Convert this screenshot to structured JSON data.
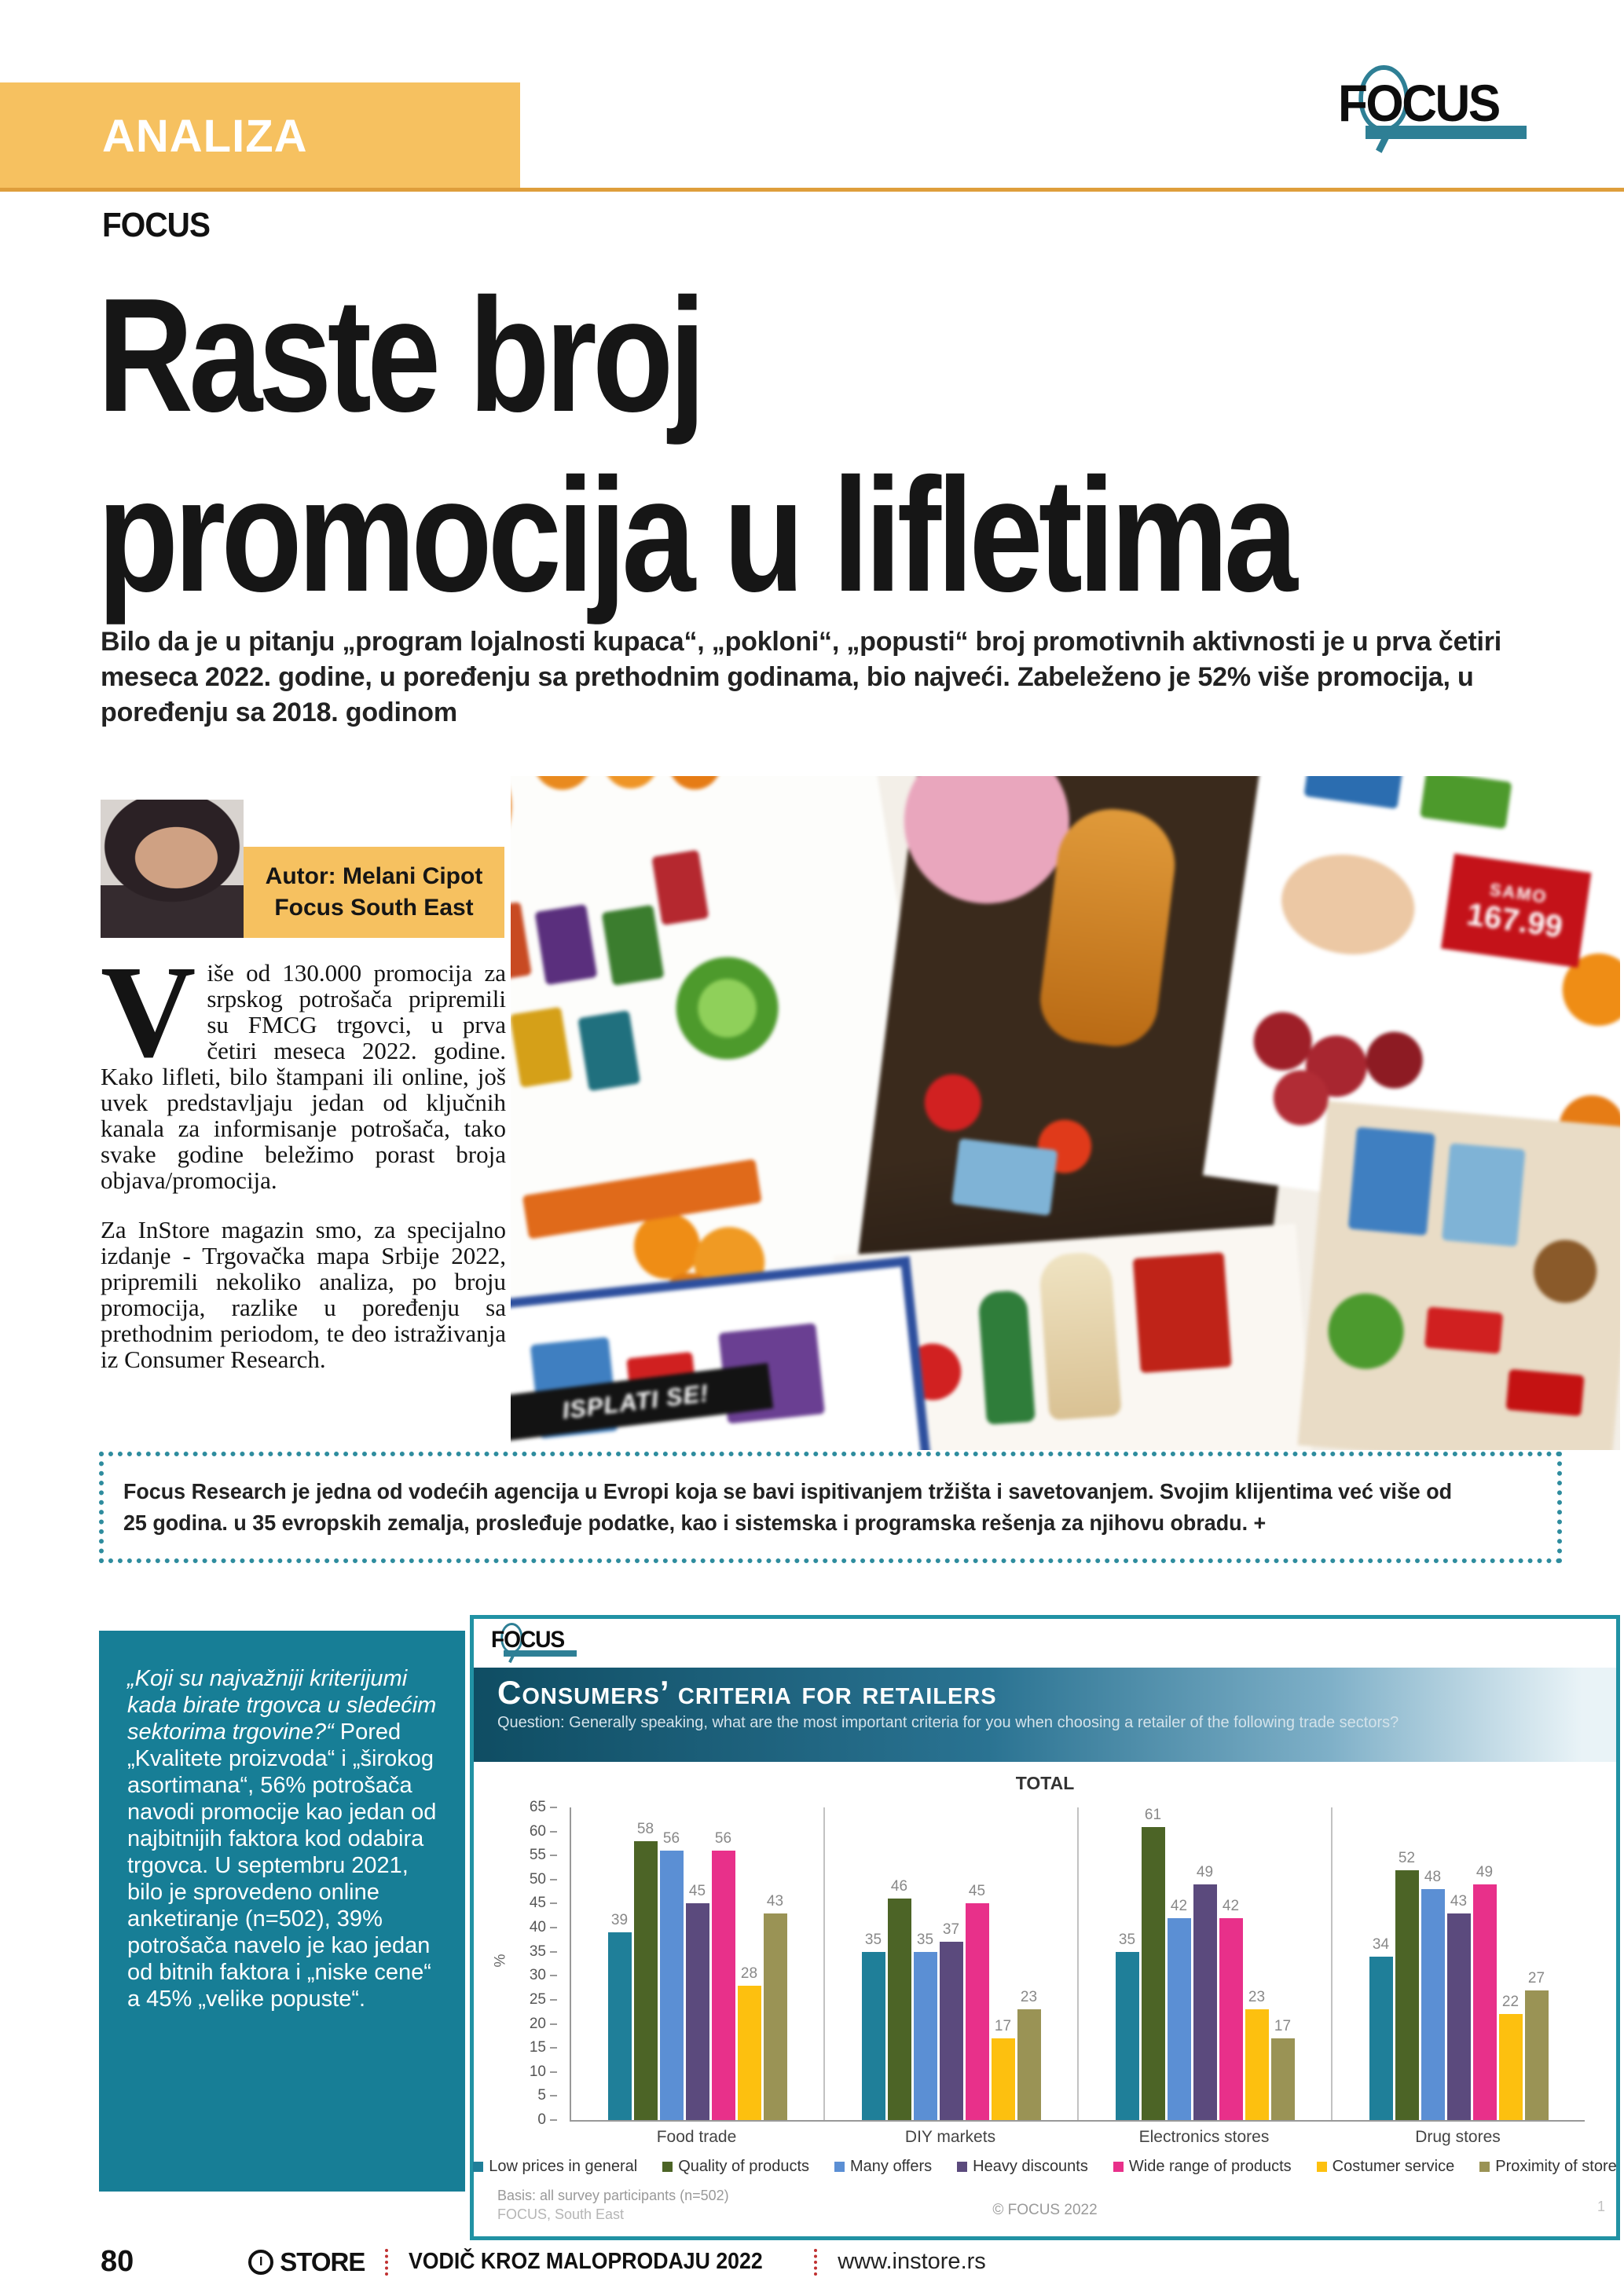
{
  "page": {
    "kicker": "ANALIZA",
    "section_label": "FOCUS",
    "title_line1": "Raste broj",
    "title_line2": "promocija u lifletima",
    "intro": "Bilo da je u pitanju „program lojalnosti kupaca“, „pokloni“, „popusti“ broj promotivnih aktivnosti je u prva četiri meseca 2022. godine, u poređenju sa prethodnim godinama, bio najveći. Zabeleženo je 52% više promocija, u poređenju sa 2018. godinom"
  },
  "logo": {
    "part1": "F",
    "o": "O",
    "part2": "CUS"
  },
  "author": {
    "line1": "Autor: Melani Cipot",
    "line2": "Focus South East"
  },
  "article": {
    "dropcap": "V",
    "para1_rest": "iše od 130.000 promocija za srpskog potrošača pripremili su FMCG trgovci, u prva četiri meseca 2022. godine. Kako lifleti, bilo štampani ili online, još uvek predstavljaju jedan od ključnih kanala za informisanje potrošača, tako svake godine beležimo porast broja objava/promocija.",
    "para2": "Za InStore magazin smo, za specijalno izdanje - Trgovačka mapa Srbije 2022, pripremili nekoliko analiza, po broju promocija, razlike u poređenju sa prethodnim periodom, te deo istraživanja iz Consumer Research."
  },
  "collage": {
    "strip_text": "ISPLATI SE!",
    "badge_small": "SAMO",
    "badge_price": "167.99"
  },
  "info_box": "Focus Research je jedna od vodećih agencija u Evropi koja se bavi ispitivanjem tržišta i savetovanjem. Svojim klijentima već više od 25 godina. u 35 evropskih zemalja, prosleđuje podatke, kao i sistemska i programska rešenja za njihovu obradu. +",
  "quote_box": {
    "italic": "„Koji su najvažniji kriterijumi kada birate trgovca u sledećim sektorima trgovine?“",
    "rest": " Pored „Kvalitete proizvoda“ i „širokog asortimana“, 56% potrošača navodi promocije kao jedan od najbitnijih faktora kod odabira trgovca. U septembru 2021, bilo je sprovedeno online anketiranje (n=502), 39% potrošača navelo je kao jedan od bitnih faktora i „niske cene“ a 45% „velike popuste“."
  },
  "chart_data": {
    "type": "bar",
    "title": "Consumers’ criteria for retailers",
    "subtitle": "Question: Generally speaking, what are the most important criteria for you when choosing a retailer of the following trade sectors?",
    "chart_label": "TOTAL",
    "ylabel": "%",
    "ylim": [
      0,
      65
    ],
    "ytick_step": 5,
    "grid": false,
    "legend_position": "bottom",
    "categories": [
      "Food trade",
      "DIY markets",
      "Electronics stores",
      "Drug stores"
    ],
    "series": [
      {
        "name": "Low prices in general",
        "color": "#1F7F99",
        "values": [
          39,
          35,
          35,
          34
        ]
      },
      {
        "name": "Quality of products",
        "color": "#4C6426",
        "values": [
          58,
          46,
          61,
          52
        ]
      },
      {
        "name": "Many offers",
        "color": "#5B8FD4",
        "values": [
          56,
          35,
          42,
          48
        ]
      },
      {
        "name": "Heavy discounts",
        "color": "#5B4A7D",
        "values": [
          45,
          37,
          49,
          43
        ]
      },
      {
        "name": "Wide range of products",
        "color": "#E8308A",
        "values": [
          56,
          45,
          42,
          49
        ]
      },
      {
        "name": "Costumer service",
        "color": "#FDC00F",
        "values": [
          28,
          17,
          23,
          22
        ]
      },
      {
        "name": "Proximity of store",
        "color": "#9A9355",
        "values": [
          43,
          23,
          17,
          27
        ]
      }
    ],
    "footnote1": "Basis: all survey participants (n=502)",
    "footnote2": "FOCUS, South East",
    "copyright": "© FOCUS 2022",
    "slide_number": "1"
  },
  "footer": {
    "page_number": "80",
    "brand_icon": "I",
    "brand": "STORE",
    "guide": "VODIČ KROZ MALOPRODAJU 2022",
    "site": "www.instore.rs"
  }
}
